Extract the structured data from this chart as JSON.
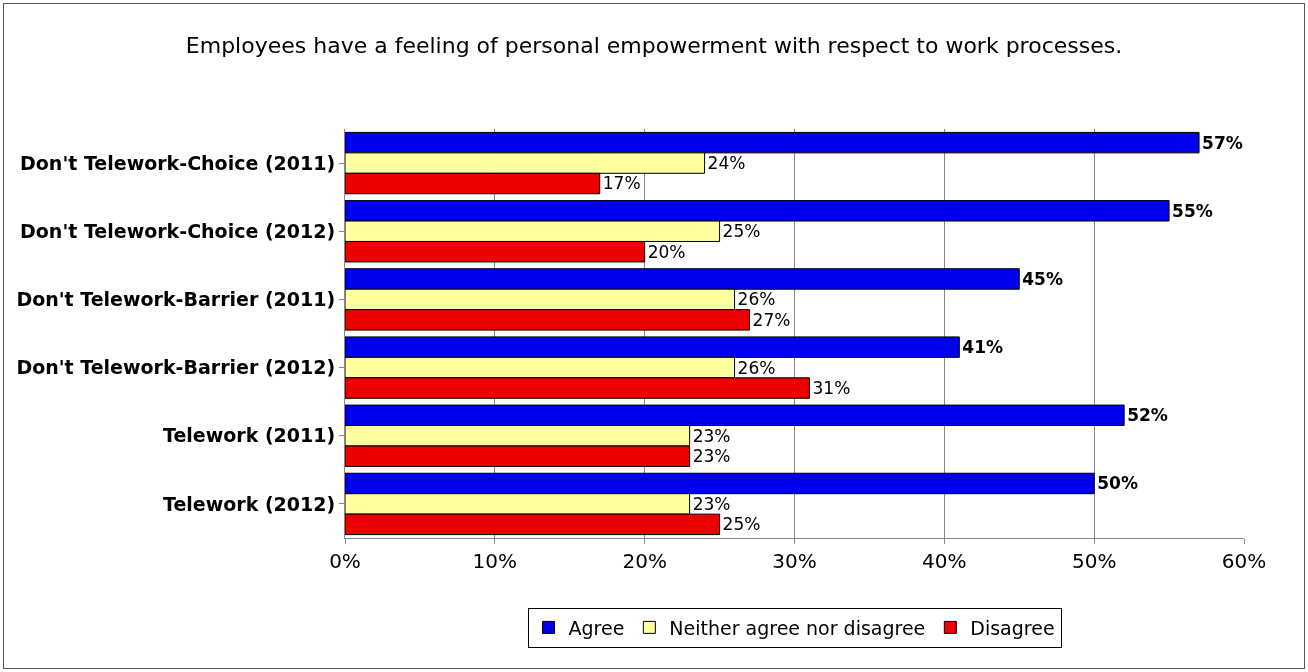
{
  "chart_data": {
    "type": "bar",
    "orientation": "horizontal",
    "title": "Employees have a feeling of personal empowerment with respect to work processes.",
    "categories": [
      "Don't Telework-Choice (2011)",
      "Don't Telework-Choice (2012)",
      "Don't Telework-Barrier (2011)",
      "Don't Telework-Barrier (2012)",
      "Telework (2011)",
      "Telework (2012)"
    ],
    "series": [
      {
        "name": "Agree",
        "color": "#0000ee",
        "values": [
          57,
          55,
          45,
          41,
          52,
          50
        ],
        "value_labels": [
          "57%",
          "55%",
          "45%",
          "41%",
          "52%",
          "50%"
        ]
      },
      {
        "name": "Neither agree nor disagree",
        "color": "#ffffa0",
        "values": [
          24,
          25,
          26,
          26,
          23,
          23
        ],
        "value_labels": [
          "24%",
          "25%",
          "26%",
          "26%",
          "23%",
          "23%"
        ]
      },
      {
        "name": "Disagree",
        "color": "#ee0000",
        "values": [
          17,
          20,
          27,
          31,
          23,
          25
        ],
        "value_labels": [
          "17%",
          "20%",
          "27%",
          "31%",
          "23%",
          "25%"
        ]
      }
    ],
    "xlim": [
      0,
      60
    ],
    "xticks": [
      {
        "value": 0,
        "label": "0%"
      },
      {
        "value": 10,
        "label": "10%"
      },
      {
        "value": 20,
        "label": "20%"
      },
      {
        "value": 30,
        "label": "30%"
      },
      {
        "value": 40,
        "label": "40%"
      },
      {
        "value": 50,
        "label": "50%"
      },
      {
        "value": 60,
        "label": "60%"
      }
    ],
    "grid": "x",
    "legend": "bottom"
  }
}
